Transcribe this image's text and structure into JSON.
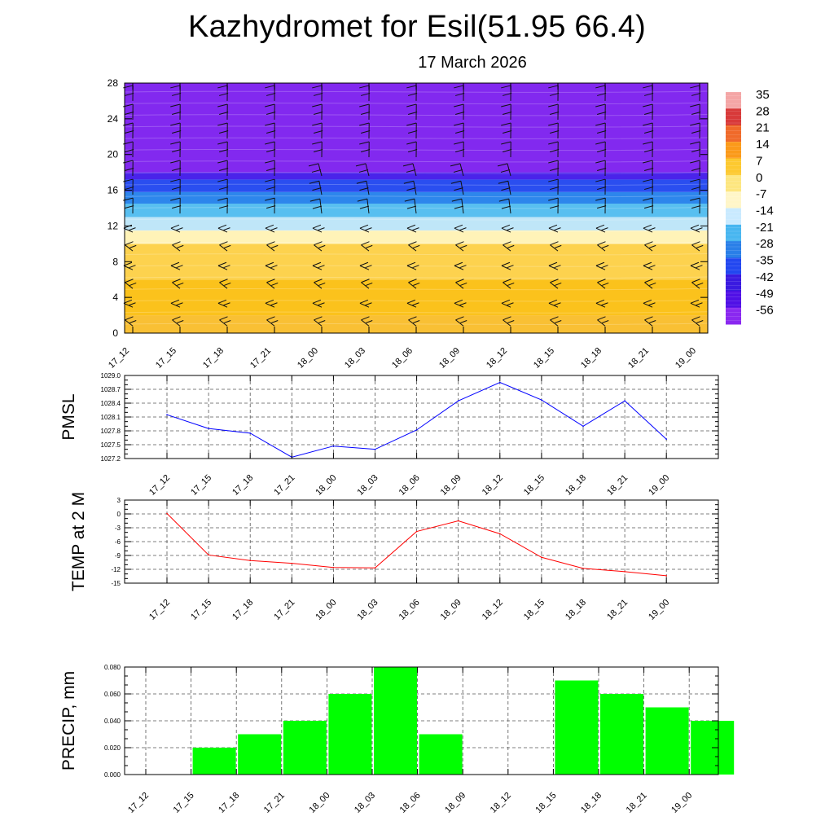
{
  "page": {
    "title": "Kazhydromet for Esil(51.95 66.4)",
    "subtitle": "17 March 2026"
  },
  "chart_data": [
    {
      "type": "heatmap",
      "x": [
        "17_12",
        "17_15",
        "17_18",
        "17_21",
        "18_00",
        "18_03",
        "18_06",
        "18_09",
        "18_12",
        "18_15",
        "18_18",
        "18_21",
        "19_00"
      ],
      "ylim": [
        0,
        28
      ],
      "yticks": [
        0,
        4,
        8,
        12,
        16,
        20,
        24,
        28
      ],
      "colorbar": {
        "labels": [
          "35",
          "28",
          "21",
          "14",
          "7",
          "0",
          "-7",
          "-14",
          "-21",
          "-28",
          "-35",
          "-42",
          "-49",
          "-56"
        ],
        "colors": [
          "#f4a6a6",
          "#d83a3a",
          "#f06a2a",
          "#fb9a1a",
          "#fdc930",
          "#fde680",
          "#fff6c8",
          "#c9eaff",
          "#48b6f0",
          "#2a7fe8",
          "#2247f0",
          "#3a1ae0",
          "#5010e6",
          "#8a28f0"
        ]
      },
      "bands": [
        {
          "from": 0,
          "to": 2,
          "color": "#f9c034"
        },
        {
          "from": 2,
          "to": 6,
          "color": "#fbc21c"
        },
        {
          "from": 6,
          "to": 10,
          "color": "#fdd24e"
        },
        {
          "from": 10,
          "to": 11.5,
          "color": "#fff3b8"
        },
        {
          "from": 11.5,
          "to": 13,
          "color": "#bfe6f8"
        },
        {
          "from": 13,
          "to": 14.5,
          "color": "#58bff0"
        },
        {
          "from": 14.5,
          "to": 15.8,
          "color": "#2d86ec"
        },
        {
          "from": 15.8,
          "to": 17.2,
          "color": "#2a4ef0"
        },
        {
          "from": 17.2,
          "to": 18,
          "color": "#4a23ea"
        },
        {
          "from": 18,
          "to": 28,
          "color": "#8229ef"
        }
      ]
    },
    {
      "type": "line",
      "ylabel": "PMSL",
      "categories": [
        "17_12",
        "17_15",
        "17_18",
        "17_21",
        "18_00",
        "18_03",
        "18_06",
        "18_09",
        "18_12",
        "18_15",
        "18_18",
        "18_21",
        "19_00"
      ],
      "values": [
        1028.15,
        1027.85,
        1027.75,
        1027.23,
        1027.47,
        1027.4,
        1027.82,
        1028.45,
        1028.85,
        1028.47,
        1027.9,
        1028.45,
        1027.62
      ],
      "ylim": [
        1027.2,
        1029.0
      ],
      "ytick_labels": [
        "1029.0",
        "1028.7",
        "1028.4",
        "1028.1",
        "1027.8",
        "1027.5",
        "1027.2"
      ],
      "ytick_values": [
        1029.0,
        1028.7,
        1028.4,
        1028.1,
        1027.8,
        1027.5,
        1027.2
      ],
      "color": "#0000ff"
    },
    {
      "type": "line",
      "ylabel": "TEMP at 2 M",
      "categories": [
        "17_12",
        "17_15",
        "17_18",
        "17_21",
        "18_00",
        "18_03",
        "18_06",
        "18_09",
        "18_12",
        "18_15",
        "18_18",
        "18_21",
        "19_00"
      ],
      "values": [
        0.1,
        -8.9,
        -10.1,
        -10.7,
        -11.6,
        -11.7,
        -3.8,
        -1.5,
        -4.3,
        -9.4,
        -11.8,
        -12.5,
        -13.4
      ],
      "ylim": [
        -15,
        3
      ],
      "ytick_labels": [
        "3",
        "0",
        "-3",
        "-6",
        "-9",
        "-12",
        "-15"
      ],
      "ytick_values": [
        3,
        0,
        -3,
        -6,
        -9,
        -12,
        -15
      ],
      "color": "#ff0000"
    },
    {
      "type": "bar",
      "ylabel": "PRECIP, mm",
      "categories": [
        "17_12",
        "17_15",
        "17_18",
        "17_21",
        "18_00",
        "18_03",
        "18_06",
        "18_09",
        "18_12",
        "18_15",
        "18_18",
        "18_21",
        "19_00"
      ],
      "values": [
        0,
        0.02,
        0.03,
        0.04,
        0.06,
        0.08,
        0.03,
        0,
        0,
        0.07,
        0.06,
        0.05,
        0.04
      ],
      "ylim": [
        0,
        0.08
      ],
      "ytick_labels": [
        "0.080",
        "0.060",
        "0.040",
        "0.020",
        "0.000"
      ],
      "ytick_values": [
        0.08,
        0.06,
        0.04,
        0.02,
        0.0
      ],
      "color": "#00ff00"
    }
  ]
}
